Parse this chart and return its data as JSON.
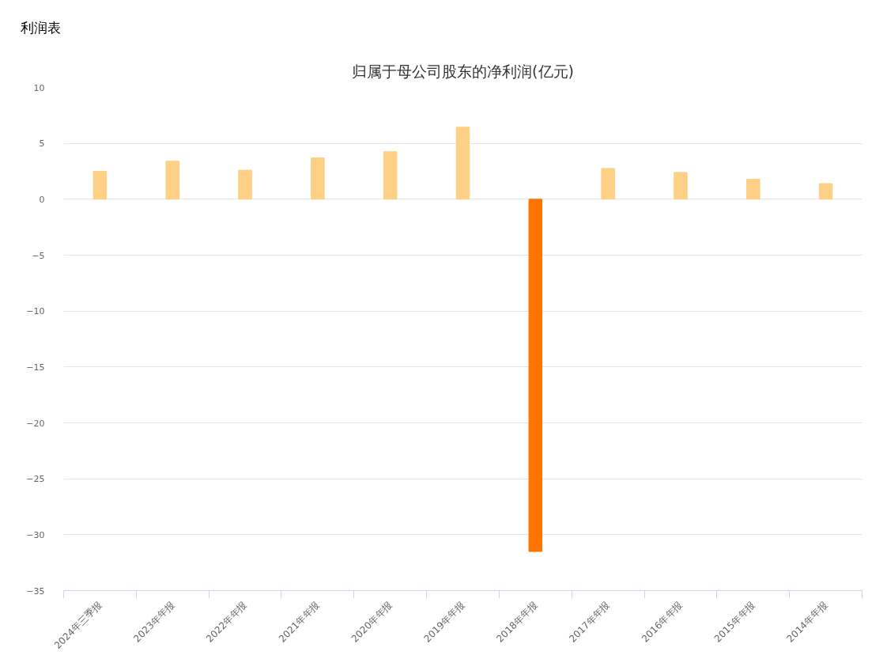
{
  "chart_data": {
    "type": "bar",
    "title": "归属于母公司股东的净利润(亿元)",
    "annotations": [
      "利润表"
    ],
    "categories": [
      "2024年三季报",
      "2023年年报",
      "2022年年报",
      "2021年年报",
      "2020年年报",
      "2019年年报",
      "2018年年报",
      "2017年年报",
      "2016年年报",
      "2015年年报",
      "2014年年报"
    ],
    "values": [
      2.5,
      3.4,
      2.6,
      3.7,
      4.25,
      6.45,
      -31.5,
      2.75,
      2.4,
      1.8,
      1.4
    ],
    "colors": [
      "#fdd085",
      "#fdd085",
      "#fdd085",
      "#fdd085",
      "#fdd085",
      "#fdd085",
      "#ff7400",
      "#fdd085",
      "#fdd085",
      "#fdd085",
      "#fdd085"
    ],
    "ylim": [
      -35,
      10
    ],
    "yticks": [
      -35,
      -30,
      -25,
      -20,
      -15,
      -10,
      -5,
      0,
      5,
      10
    ],
    "grid": "y"
  }
}
